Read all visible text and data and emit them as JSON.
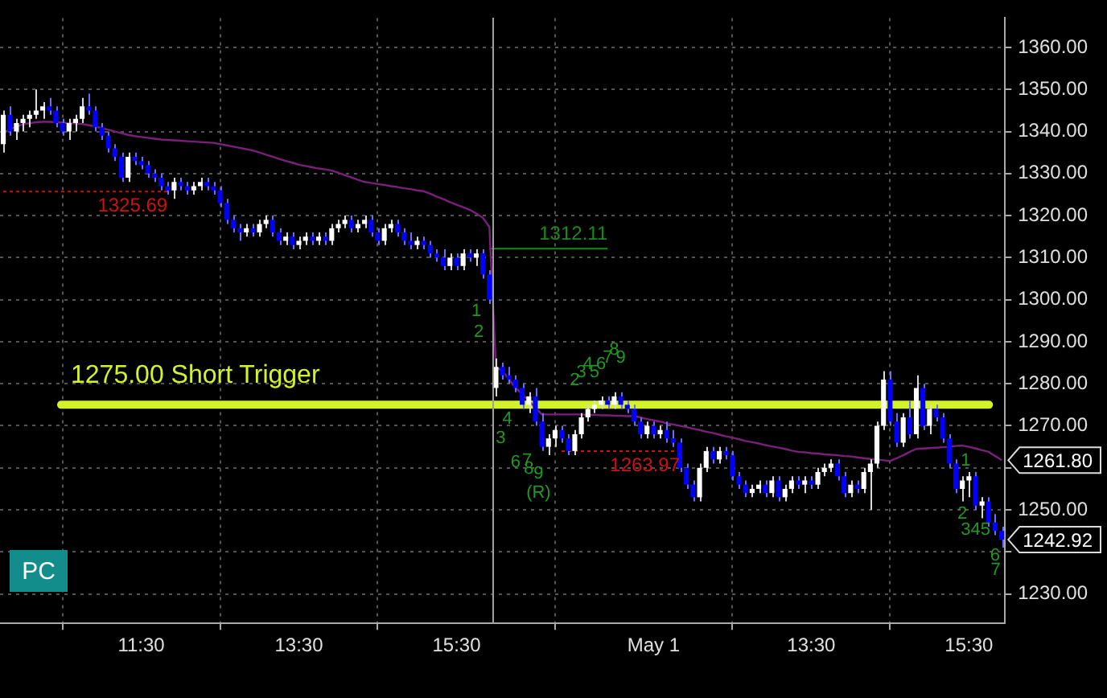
{
  "chart_data": {
    "type": "candlestick",
    "categories": [
      null,
      null,
      null,
      null,
      null,
      null,
      null,
      null,
      null,
      null,
      null,
      null,
      null,
      null,
      null,
      null,
      null,
      null,
      null,
      null,
      null,
      "11:30",
      null,
      null,
      null,
      null,
      null,
      null,
      null,
      null,
      null,
      null,
      null,
      null,
      null,
      null,
      null,
      null,
      null,
      null,
      null,
      null,
      null,
      null,
      null,
      "13:30",
      null,
      null,
      null,
      null,
      null,
      null,
      null,
      null,
      null,
      null,
      null,
      null,
      null,
      null,
      null,
      null,
      null,
      null,
      null,
      null,
      null,
      null,
      null,
      "15:30",
      null,
      null,
      null,
      null,
      null,
      null,
      null,
      null,
      null,
      null,
      null,
      null,
      null,
      null,
      null,
      null,
      null,
      null,
      null,
      null,
      null,
      null,
      null,
      null,
      null,
      null,
      null,
      null,
      null,
      "May 1",
      null,
      null,
      null,
      null,
      null,
      null,
      null,
      null,
      null,
      null,
      null,
      null,
      null,
      null,
      null,
      null,
      null,
      null,
      null,
      null,
      null,
      null,
      null,
      "13:30",
      null,
      null,
      null,
      null,
      null,
      null,
      null,
      null,
      null,
      null,
      null,
      null,
      null,
      null,
      null,
      null,
      null,
      null,
      null,
      null,
      null,
      null,
      null,
      "15:30",
      null,
      null,
      null,
      null,
      null
    ],
    "ohlc": [
      [
        1337,
        1345,
        1335,
        1344
      ],
      [
        1344,
        1346,
        1339,
        1340
      ],
      [
        1340,
        1343,
        1338,
        1342
      ],
      [
        1342,
        1344,
        1340,
        1343
      ],
      [
        1343,
        1345,
        1341,
        1344
      ],
      [
        1344,
        1350,
        1343,
        1345
      ],
      [
        1345,
        1347,
        1343,
        1346
      ],
      [
        1346,
        1348,
        1344,
        1345
      ],
      [
        1345,
        1346,
        1341,
        1342
      ],
      [
        1342,
        1343,
        1339,
        1340
      ],
      [
        1340,
        1343,
        1338,
        1342
      ],
      [
        1342,
        1344,
        1340,
        1343
      ],
      [
        1343,
        1348,
        1342,
        1346
      ],
      [
        1346,
        1349,
        1344,
        1345
      ],
      [
        1345,
        1346,
        1340,
        1341
      ],
      [
        1341,
        1342,
        1338,
        1339
      ],
      [
        1339,
        1340,
        1335,
        1336
      ],
      [
        1336,
        1337,
        1333,
        1334
      ],
      [
        1334,
        1335,
        1328,
        1329
      ],
      [
        1329,
        1335,
        1328,
        1334
      ],
      [
        1334,
        1335,
        1332,
        1333
      ],
      [
        1333,
        1334,
        1331,
        1332
      ],
      [
        1332,
        1333,
        1329,
        1330
      ],
      [
        1330,
        1331,
        1328,
        1329
      ],
      [
        1329,
        1330,
        1326,
        1327
      ],
      [
        1327,
        1328,
        1325,
        1326
      ],
      [
        1326,
        1329,
        1324,
        1328
      ],
      [
        1328,
        1329,
        1326,
        1327
      ],
      [
        1327,
        1328,
        1325,
        1326
      ],
      [
        1326,
        1328,
        1325,
        1327
      ],
      [
        1327,
        1329,
        1326,
        1328
      ],
      [
        1328,
        1329,
        1326,
        1327
      ],
      [
        1327,
        1328,
        1325,
        1326
      ],
      [
        1326,
        1327,
        1322,
        1323
      ],
      [
        1323,
        1324,
        1318,
        1319
      ],
      [
        1319,
        1320,
        1316,
        1317
      ],
      [
        1317,
        1318,
        1314,
        1316
      ],
      [
        1316,
        1318,
        1315,
        1317
      ],
      [
        1317,
        1318,
        1315,
        1316
      ],
      [
        1316,
        1319,
        1315,
        1318
      ],
      [
        1318,
        1320,
        1317,
        1319
      ],
      [
        1319,
        1320,
        1315,
        1316
      ],
      [
        1316,
        1317,
        1313,
        1314
      ],
      [
        1314,
        1316,
        1313,
        1315
      ],
      [
        1315,
        1316,
        1312,
        1313
      ],
      [
        1313,
        1315,
        1312,
        1314
      ],
      [
        1314,
        1316,
        1313,
        1315
      ],
      [
        1315,
        1316,
        1313,
        1314
      ],
      [
        1314,
        1316,
        1313,
        1315
      ],
      [
        1315,
        1316,
        1313,
        1314
      ],
      [
        1314,
        1318,
        1313,
        1317
      ],
      [
        1317,
        1319,
        1316,
        1318
      ],
      [
        1318,
        1320,
        1317,
        1319
      ],
      [
        1319,
        1320,
        1316,
        1317
      ],
      [
        1317,
        1319,
        1316,
        1318
      ],
      [
        1318,
        1320,
        1317,
        1319
      ],
      [
        1319,
        1320,
        1315,
        1316
      ],
      [
        1316,
        1317,
        1313,
        1314
      ],
      [
        1314,
        1318,
        1313,
        1317
      ],
      [
        1317,
        1319,
        1316,
        1318
      ],
      [
        1318,
        1319,
        1315,
        1316
      ],
      [
        1316,
        1317,
        1313,
        1314
      ],
      [
        1314,
        1316,
        1312,
        1313
      ],
      [
        1313,
        1315,
        1312,
        1314
      ],
      [
        1314,
        1315,
        1312,
        1313
      ],
      [
        1313,
        1314,
        1310,
        1311
      ],
      [
        1311,
        1312,
        1309,
        1310
      ],
      [
        1310,
        1312,
        1307,
        1308
      ],
      [
        1308,
        1311,
        1307,
        1310
      ],
      [
        1310,
        1311,
        1307,
        1308
      ],
      [
        1308,
        1312,
        1307,
        1311
      ],
      [
        1311,
        1312,
        1309,
        1310
      ],
      [
        1310,
        1312,
        1308,
        1311
      ],
      [
        1311,
        1312,
        1305,
        1306
      ],
      [
        1306,
        1307,
        1299,
        1300
      ],
      [
        1279,
        1286,
        1277,
        1284
      ],
      [
        1284,
        1285,
        1281,
        1282
      ],
      [
        1282,
        1284,
        1280,
        1281
      ],
      [
        1281,
        1282,
        1278,
        1279
      ],
      [
        1279,
        1280,
        1274,
        1275
      ],
      [
        1275,
        1278,
        1273,
        1277
      ],
      [
        1277,
        1279,
        1270,
        1271
      ],
      [
        1271,
        1273,
        1264,
        1265
      ],
      [
        1265,
        1268,
        1263,
        1267
      ],
      [
        1267,
        1270,
        1265,
        1269
      ],
      [
        1269,
        1270,
        1266,
        1267
      ],
      [
        1267,
        1268,
        1263,
        1264
      ],
      [
        1264,
        1269,
        1263,
        1268
      ],
      [
        1268,
        1273,
        1267,
        1272
      ],
      [
        1272,
        1275,
        1271,
        1274
      ],
      [
        1274,
        1276,
        1273,
        1275
      ],
      [
        1275,
        1277,
        1274,
        1276
      ],
      [
        1276,
        1277,
        1274,
        1275
      ],
      [
        1275,
        1278,
        1274,
        1277
      ],
      [
        1277,
        1278,
        1274,
        1275
      ],
      [
        1275,
        1276,
        1273,
        1274
      ],
      [
        1274,
        1275,
        1270,
        1271
      ],
      [
        1271,
        1272,
        1267,
        1268
      ],
      [
        1268,
        1271,
        1267,
        1270
      ],
      [
        1270,
        1271,
        1267,
        1268
      ],
      [
        1268,
        1270,
        1267,
        1269
      ],
      [
        1269,
        1271,
        1266,
        1267
      ],
      [
        1267,
        1269,
        1265,
        1266
      ],
      [
        1266,
        1267,
        1259,
        1260
      ],
      [
        1260,
        1261,
        1255,
        1256
      ],
      [
        1256,
        1257,
        1252,
        1253
      ],
      [
        1253,
        1261,
        1252,
        1260
      ],
      [
        1260,
        1265,
        1259,
        1264
      ],
      [
        1264,
        1265,
        1261,
        1262
      ],
      [
        1262,
        1265,
        1261,
        1264
      ],
      [
        1264,
        1265,
        1262,
        1263
      ],
      [
        1263,
        1264,
        1257,
        1258
      ],
      [
        1258,
        1259,
        1255,
        1256
      ],
      [
        1256,
        1257,
        1253,
        1254
      ],
      [
        1254,
        1256,
        1253,
        1255
      ],
      [
        1255,
        1257,
        1254,
        1256
      ],
      [
        1256,
        1257,
        1253,
        1254
      ],
      [
        1254,
        1258,
        1253,
        1257
      ],
      [
        1257,
        1258,
        1252,
        1253
      ],
      [
        1253,
        1256,
        1252,
        1255
      ],
      [
        1255,
        1258,
        1254,
        1257
      ],
      [
        1257,
        1258,
        1255,
        1256
      ],
      [
        1256,
        1258,
        1254,
        1257
      ],
      [
        1257,
        1258,
        1255,
        1256
      ],
      [
        1256,
        1260,
        1255,
        1259
      ],
      [
        1259,
        1261,
        1258,
        1260
      ],
      [
        1260,
        1262,
        1259,
        1261
      ],
      [
        1261,
        1262,
        1257,
        1258
      ],
      [
        1258,
        1259,
        1253,
        1254
      ],
      [
        1254,
        1257,
        1253,
        1256
      ],
      [
        1256,
        1257,
        1254,
        1255
      ],
      [
        1255,
        1260,
        1254,
        1259
      ],
      [
        1259,
        1262,
        1250,
        1261
      ],
      [
        1261,
        1271,
        1260,
        1270
      ],
      [
        1270,
        1283,
        1269,
        1281
      ],
      [
        1281,
        1283,
        1270,
        1271
      ],
      [
        1271,
        1273,
        1265,
        1266
      ],
      [
        1266,
        1273,
        1265,
        1272
      ],
      [
        1272,
        1276,
        1267,
        1268
      ],
      [
        1268,
        1282,
        1267,
        1279
      ],
      [
        1279,
        1280,
        1269,
        1270
      ],
      [
        1270,
        1275,
        1268,
        1274
      ],
      [
        1274,
        1275,
        1271,
        1272
      ],
      [
        1272,
        1273,
        1266,
        1267
      ],
      [
        1267,
        1268,
        1260,
        1261
      ],
      [
        1261,
        1262,
        1254,
        1255
      ],
      [
        1255,
        1258,
        1252,
        1257
      ],
      [
        1257,
        1259,
        1253,
        1258
      ],
      [
        1258,
        1259,
        1250,
        1251
      ],
      [
        1251,
        1253,
        1248,
        1252
      ],
      [
        1252,
        1253,
        1246,
        1247
      ],
      [
        1247,
        1249,
        1244,
        1245
      ],
      [
        1245,
        1246,
        1241,
        1242.92
      ]
    ],
    "series": [
      {
        "type": "line",
        "color": "#7a1f7a",
        "values": [
          1339.6,
          1340.5,
          1341.2,
          1341.7,
          1342.0,
          1342.2,
          1342.3,
          1342.3,
          1342.2,
          1342.1,
          1342.0,
          1341.9,
          1341.8,
          1341.5,
          1341.2,
          1340.8,
          1340.4,
          1340.0,
          1339.6,
          1339.2,
          1338.9,
          1338.7,
          1338.5,
          1338.3,
          1338.1,
          1338.0,
          1337.9,
          1337.8,
          1337.7,
          1337.6,
          1337.5,
          1337.4,
          1337.3,
          1337.0,
          1336.7,
          1336.4,
          1336.1,
          1335.8,
          1335.5,
          1335.0,
          1334.5,
          1334.0,
          1333.5,
          1333.0,
          1332.6,
          1332.1,
          1331.8,
          1331.5,
          1331.2,
          1331.0,
          1330.7,
          1330.2,
          1329.6,
          1329.1,
          1328.5,
          1328.0,
          1327.8,
          1327.5,
          1327.3,
          1327.0,
          1326.8,
          1326.5,
          1326.3,
          1326.0,
          1325.8,
          1325.2,
          1324.5,
          1323.9,
          1323.2,
          1322.6,
          1322.0,
          1321.4,
          1320.5,
          1319.5,
          1317.3,
          1284,
          1283,
          1281,
          1279,
          1277.5,
          1276,
          1274.3,
          1272.7,
          1272.7,
          1272.7,
          1272.7,
          1272.7,
          1272.7,
          1272.7,
          1272.6,
          1272.6,
          1272.5,
          1272.5,
          1272.4,
          1272.4,
          1272.3,
          1272.3,
          1272.0,
          1271.6,
          1271.3,
          1271.0,
          1270.6,
          1270.3,
          1270.0,
          1269.7,
          1269.3,
          1269.0,
          1268.6,
          1268.3,
          1267.9,
          1267.5,
          1267.2,
          1266.8,
          1266.4,
          1266.1,
          1265.8,
          1265.4,
          1265.1,
          1264.8,
          1264.5,
          1264.1,
          1263.8,
          1263.7,
          1263.5,
          1263.4,
          1263.2,
          1263.1,
          1263.0,
          1262.8,
          1262.7,
          1262.5,
          1262.3,
          1262.1,
          1262.0,
          1261.8,
          1261.6,
          1262.3,
          1263.0,
          1263.8,
          1264.5,
          1264.6,
          1264.7,
          1264.8,
          1264.9,
          1265.0,
          1265.2,
          1265.3,
          1265.0,
          1264.6,
          1264.2,
          1263.8,
          1262.8,
          1261.8
        ]
      },
      {
        "type": "line",
        "name": "1325.69",
        "color": "#d01010",
        "line_style": "dotted",
        "values": [
          1325.69,
          1325.69,
          1325.69,
          1325.69,
          1325.69,
          1325.69,
          1325.69,
          1325.69,
          1325.69,
          1325.69,
          1325.69,
          1325.69,
          1325.69,
          1325.69,
          1325.69,
          1325.69,
          1325.69,
          1325.69,
          1325.69,
          1325.69,
          1325.69,
          1325.69,
          1325.69,
          1325.69,
          1325.69,
          1325.69,
          null,
          null,
          null,
          null,
          null,
          null,
          null,
          null,
          null,
          null,
          null,
          null,
          null,
          null,
          null,
          null,
          null,
          null,
          null,
          null,
          null,
          null,
          null,
          null,
          null,
          null,
          null,
          null,
          null,
          null,
          null,
          null,
          null,
          null,
          null,
          null,
          null,
          null,
          null,
          null,
          null,
          null,
          null,
          null,
          null,
          null,
          null,
          null,
          null,
          null,
          null,
          null,
          null,
          null,
          null,
          null,
          null,
          null,
          null,
          null,
          null,
          null,
          null,
          null,
          null,
          null,
          null,
          null,
          null,
          null,
          null,
          null,
          null,
          null,
          null,
          null,
          null,
          null,
          null,
          null,
          null,
          null,
          null,
          null,
          null,
          null,
          null,
          null,
          null,
          null,
          null,
          null,
          null,
          null,
          null,
          null,
          null,
          null,
          null,
          null,
          null,
          null,
          null,
          null,
          null,
          null,
          null,
          null,
          null,
          null,
          null,
          null,
          null,
          null,
          null,
          null,
          null,
          null,
          null,
          null,
          null,
          null,
          null,
          null,
          null,
          null,
          null
        ]
      },
      {
        "type": "line",
        "name": "1312.11",
        "color": "#1a8a1a",
        "values": [
          null,
          null,
          null,
          null,
          null,
          null,
          null,
          null,
          null,
          null,
          null,
          null,
          null,
          null,
          null,
          null,
          null,
          null,
          null,
          null,
          null,
          null,
          null,
          null,
          null,
          null,
          null,
          null,
          null,
          null,
          null,
          null,
          null,
          null,
          null,
          null,
          null,
          null,
          null,
          null,
          null,
          null,
          null,
          null,
          null,
          null,
          null,
          null,
          null,
          null,
          null,
          null,
          null,
          null,
          null,
          null,
          null,
          null,
          null,
          null,
          null,
          null,
          null,
          null,
          null,
          null,
          null,
          null,
          null,
          null,
          null,
          null,
          null,
          null,
          1312.11,
          1312.11,
          1312.11,
          1312.11,
          1312.11,
          1312.11,
          1312.11,
          1312.11,
          1312.11,
          1312.11,
          1312.11,
          1312.11,
          1312.11,
          1312.11,
          1312.11,
          1312.11,
          1312.11,
          1312.11,
          1312.11,
          null,
          null,
          null,
          null,
          null,
          null,
          null,
          null,
          null,
          null,
          null,
          null,
          null,
          null,
          null,
          null,
          null,
          null,
          null,
          null,
          null,
          null,
          null,
          null,
          null,
          null,
          null,
          null,
          null,
          null,
          null,
          null,
          null,
          null,
          null,
          null,
          null,
          null,
          null,
          null,
          null,
          null,
          null,
          null,
          null,
          null,
          null,
          null,
          null,
          null,
          null,
          null,
          null,
          null,
          null,
          null,
          null,
          null,
          null,
          null
        ]
      },
      {
        "type": "line",
        "name": "1263.97",
        "color": "#d01010",
        "line_style": "dotted",
        "values": [
          null,
          null,
          null,
          null,
          null,
          null,
          null,
          null,
          null,
          null,
          null,
          null,
          null,
          null,
          null,
          null,
          null,
          null,
          null,
          null,
          null,
          null,
          null,
          null,
          null,
          null,
          null,
          null,
          null,
          null,
          null,
          null,
          null,
          null,
          null,
          null,
          null,
          null,
          null,
          null,
          null,
          null,
          null,
          null,
          null,
          null,
          null,
          null,
          null,
          null,
          null,
          null,
          null,
          null,
          null,
          null,
          null,
          null,
          null,
          null,
          null,
          null,
          null,
          null,
          null,
          null,
          null,
          null,
          null,
          null,
          null,
          null,
          null,
          null,
          null,
          null,
          null,
          null,
          null,
          null,
          null,
          null,
          null,
          null,
          null,
          1263.97,
          1263.97,
          1263.97,
          1263.97,
          1263.97,
          1263.97,
          1263.97,
          1263.97,
          1263.97,
          1263.97,
          1263.97,
          1263.97,
          1263.97,
          1263.97,
          1263.97,
          1263.97,
          1263.97,
          1263.97,
          1263.97,
          null,
          null,
          null,
          null,
          null,
          null,
          null,
          null,
          null,
          null,
          null,
          null,
          null,
          null,
          null,
          null,
          null,
          null,
          null,
          null,
          null,
          null,
          null,
          null,
          null,
          null,
          null,
          null,
          null,
          null,
          null,
          null,
          null,
          null,
          null,
          null,
          null,
          null,
          null,
          null,
          null,
          null,
          null,
          null,
          null,
          null,
          null,
          null,
          null
        ]
      }
    ],
    "ref_lines": [
      {
        "axis": "y",
        "value": 1275,
        "label": "1275.00 Short Trigger",
        "color": "#d4f22a"
      }
    ],
    "annotations": [
      "PC",
      "1",
      "2",
      "3",
      "4",
      "6",
      "7",
      "8",
      "9",
      "(R)",
      "2",
      "3",
      "4",
      "5",
      "6",
      "7",
      "8",
      "9",
      "1",
      "2",
      "3",
      "4",
      "5",
      "6",
      "7",
      "1261.80",
      "1242.92"
    ],
    "ylim": [
      1223,
      1367
    ],
    "yticks": [
      {
        "value": 1230,
        "label": "1230.00"
      },
      {
        "value": 1240,
        "label": null
      },
      {
        "value": 1250,
        "label": "1250.00"
      },
      {
        "value": 1260,
        "label": null
      },
      {
        "value": 1270,
        "label": "1270.00"
      },
      {
        "value": 1280,
        "label": "1280.00"
      },
      {
        "value": 1290,
        "label": "1290.00"
      },
      {
        "value": 1300,
        "label": "1300.00"
      },
      {
        "value": 1310,
        "label": "1310.00"
      },
      {
        "value": 1320,
        "label": "1320.00"
      },
      {
        "value": 1330,
        "label": "1330.00"
      },
      {
        "value": 1340,
        "label": "1340.00"
      },
      {
        "value": 1350,
        "label": "1350.00"
      },
      {
        "value": 1360,
        "label": "1360.00"
      }
    ],
    "grid": true,
    "legend": false,
    "marker": "none"
  }
}
